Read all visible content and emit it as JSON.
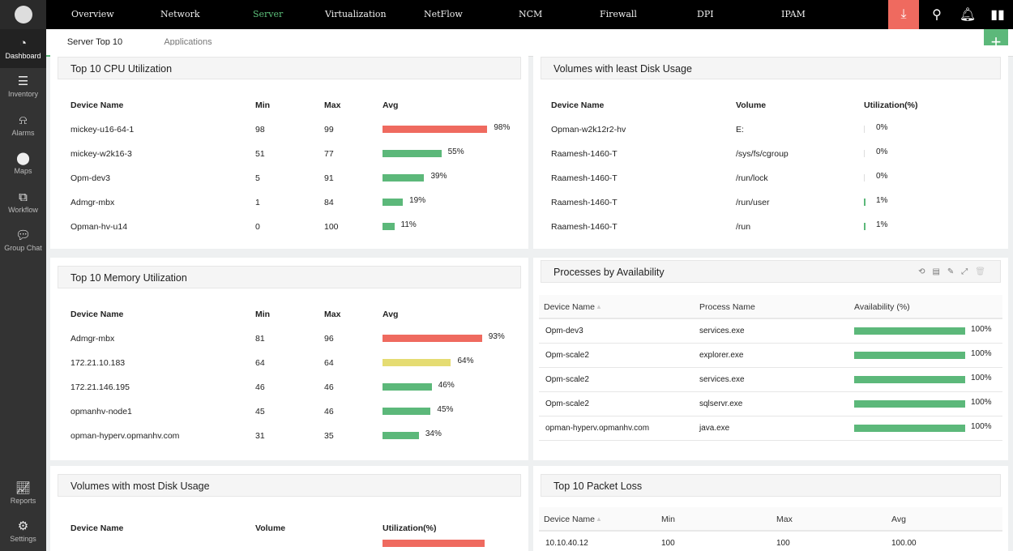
{
  "sidebar": {
    "items": [
      {
        "label": "Dashboard",
        "icon": "dashboard-icon"
      },
      {
        "label": "Inventory",
        "icon": "inventory-icon"
      },
      {
        "label": "Alarms",
        "icon": "alarm-icon"
      },
      {
        "label": "Maps",
        "icon": "map-pin-icon"
      },
      {
        "label": "Workflow",
        "icon": "workflow-icon"
      },
      {
        "label": "Group Chat",
        "icon": "chat-icon"
      }
    ],
    "bottom": [
      {
        "label": "Reports",
        "icon": "reports-icon"
      },
      {
        "label": "Settings",
        "icon": "gear-icon"
      }
    ]
  },
  "topnav": [
    "Overview",
    "Network",
    "Server",
    "Virtualization",
    "NetFlow",
    "NCM",
    "Firewall",
    "DPI",
    "IPAM"
  ],
  "subtabs": [
    "Server Top 10",
    "Applications"
  ],
  "colors": {
    "red": "#ef6a5f",
    "green": "#5cb87a",
    "yellow": "#e5dc72"
  },
  "cpu": {
    "title": "Top 10 CPU Utilization",
    "headers": [
      "Device Name",
      "Min",
      "Max",
      "Avg"
    ],
    "rows": [
      {
        "name": "mickey-u16-64-1",
        "min": "98",
        "max": "99",
        "avg": 98,
        "avg_label": "98%",
        "color": "red"
      },
      {
        "name": "mickey-w2k16-3",
        "min": "51",
        "max": "77",
        "avg": 55,
        "avg_label": "55%",
        "color": "green"
      },
      {
        "name": "Opm-dev3",
        "min": "5",
        "max": "91",
        "avg": 39,
        "avg_label": "39%",
        "color": "green"
      },
      {
        "name": "Admgr-mbx",
        "min": "1",
        "max": "84",
        "avg": 19,
        "avg_label": "19%",
        "color": "green"
      },
      {
        "name": "Opman-hv-u14",
        "min": "0",
        "max": "100",
        "avg": 11,
        "avg_label": "11%",
        "color": "green"
      }
    ]
  },
  "mem": {
    "title": "Top 10 Memory Utilization",
    "headers": [
      "Device Name",
      "Min",
      "Max",
      "Avg"
    ],
    "rows": [
      {
        "name": "Admgr-mbx",
        "min": "81",
        "max": "96",
        "avg": 93,
        "avg_label": "93%",
        "color": "red"
      },
      {
        "name": "172.21.10.183",
        "min": "64",
        "max": "64",
        "avg": 64,
        "avg_label": "64%",
        "color": "yellow"
      },
      {
        "name": "172.21.146.195",
        "min": "46",
        "max": "46",
        "avg": 46,
        "avg_label": "46%",
        "color": "green"
      },
      {
        "name": "opmanhv-node1",
        "min": "45",
        "max": "46",
        "avg": 45,
        "avg_label": "45%",
        "color": "green"
      },
      {
        "name": "opman-hyperv.opmanhv.com",
        "min": "31",
        "max": "35",
        "avg": 34,
        "avg_label": "34%",
        "color": "green"
      }
    ]
  },
  "least": {
    "title": "Volumes with least Disk Usage",
    "headers": [
      "Device Name",
      "Volume",
      "Utilization(%)"
    ],
    "rows": [
      {
        "name": "Opman-w2k12r2-hv",
        "volume": "E:",
        "util": 0,
        "util_label": "0%"
      },
      {
        "name": "Raamesh-1460-T",
        "volume": "/sys/fs/cgroup",
        "util": 0,
        "util_label": "0%"
      },
      {
        "name": "Raamesh-1460-T",
        "volume": "/run/lock",
        "util": 0,
        "util_label": "0%"
      },
      {
        "name": "Raamesh-1460-T",
        "volume": "/run/user",
        "util": 1,
        "util_label": "1%"
      },
      {
        "name": "Raamesh-1460-T",
        "volume": "/run",
        "util": 1,
        "util_label": "1%"
      }
    ]
  },
  "proc": {
    "title": "Processes by Availability",
    "headers": [
      "Device Name",
      "Process Name",
      "Availability (%)"
    ],
    "rows": [
      {
        "name": "Opm-dev3",
        "process": "services.exe",
        "avail": 100,
        "avail_label": "100%"
      },
      {
        "name": "Opm-scale2",
        "process": "explorer.exe",
        "avail": 100,
        "avail_label": "100%"
      },
      {
        "name": "Opm-scale2",
        "process": "services.exe",
        "avail": 100,
        "avail_label": "100%"
      },
      {
        "name": "Opm-scale2",
        "process": "sqlservr.exe",
        "avail": 100,
        "avail_label": "100%"
      },
      {
        "name": "opman-hyperv.opmanhv.com",
        "process": "java.exe",
        "avail": 100,
        "avail_label": "100%"
      }
    ]
  },
  "most": {
    "title": "Volumes with most Disk Usage",
    "headers": [
      "Device Name",
      "Volume",
      "Utilization(%)"
    ]
  },
  "loss": {
    "title": "Top 10 Packet Loss",
    "headers": [
      "Device Name",
      "Min",
      "Max",
      "Avg"
    ],
    "rows": [
      {
        "name": "10.10.40.12",
        "min": "100",
        "max": "100",
        "avg": "100.00"
      }
    ]
  }
}
